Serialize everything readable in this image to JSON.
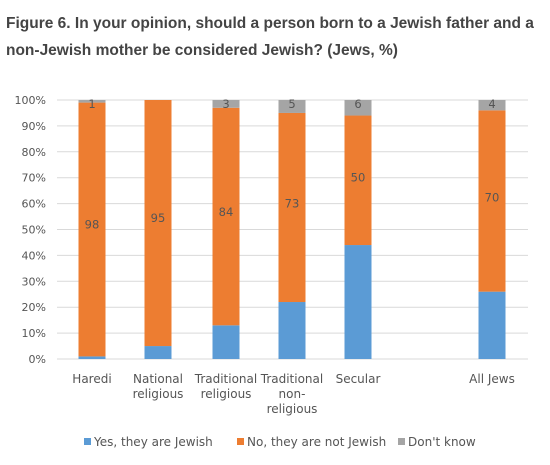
{
  "chart_data": {
    "type": "bar",
    "stacked": true,
    "title": "Figure 6. In your opinion, should a person born to a Jewish father and a non-Jewish mother be considered Jewish? (Jews, %)",
    "categories": [
      [
        "Haredi"
      ],
      [
        "National",
        "religious"
      ],
      [
        "Traditional",
        "religious"
      ],
      [
        "Traditional",
        "non-",
        "religious"
      ],
      [
        "Secular"
      ],
      [
        "All Jews"
      ]
    ],
    "series": [
      {
        "name": "Yes, they are Jewish",
        "color": "#5B9BD5",
        "values": [
          1,
          5,
          13,
          22,
          44,
          26
        ],
        "labels": [
          "",
          "",
          "",
          "",
          "",
          ""
        ]
      },
      {
        "name": "No, they are not Jewish",
        "color": "#ED7D31",
        "values": [
          98,
          95,
          84,
          73,
          50,
          70
        ],
        "labels": [
          "98",
          "95",
          "84",
          "73",
          "50",
          "70"
        ]
      },
      {
        "name": "Don't know",
        "color": "#A5A5A5",
        "values": [
          1,
          0,
          3,
          5,
          6,
          4
        ],
        "labels": [
          "1",
          "",
          "3",
          "5",
          "6",
          "4"
        ]
      }
    ],
    "yticks": [
      "0%",
      "10%",
      "20%",
      "30%",
      "40%",
      "50%",
      "60%",
      "70%",
      "80%",
      "90%",
      "100%"
    ],
    "ylim": [
      0,
      100
    ],
    "grid": true,
    "legend_position": "bottom"
  }
}
